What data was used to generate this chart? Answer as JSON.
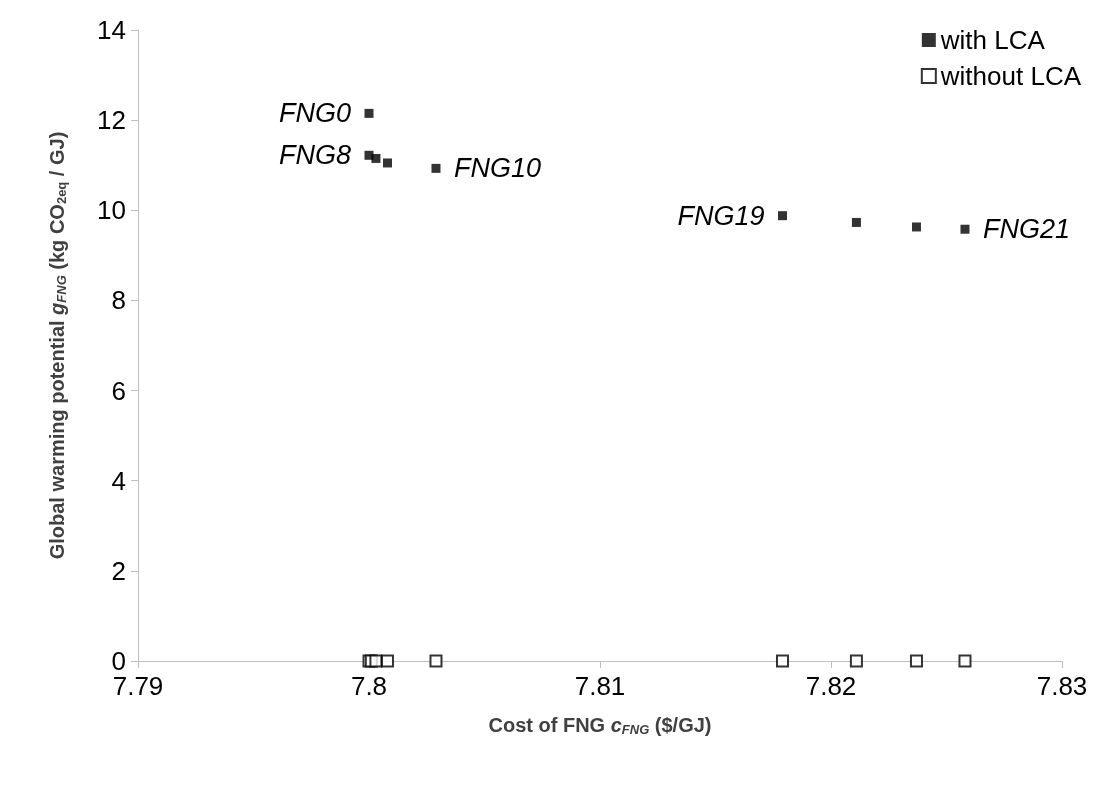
{
  "chart_data": {
    "type": "scatter",
    "xlabel": "Cost of FNG c$_{FNG}$ ($/GJ)",
    "ylabel": "Global warming potential g$_{FNG}$ (kg CO$_{2eq}$ / GJ)",
    "series": [
      {
        "name": "with LCA",
        "color": "#000000",
        "x": [
          7.8,
          7.8,
          7.8003,
          7.8008,
          7.8029,
          7.8179,
          7.8211,
          7.8237,
          7.8258
        ],
        "values": [
          12.15,
          11.22,
          11.15,
          11.05,
          10.93,
          9.88,
          9.73,
          9.63,
          9.58
        ]
      },
      {
        "name": "without LCA",
        "color": "#000000",
        "x": [
          7.8,
          7.8001,
          7.8003,
          7.8008,
          7.8029,
          7.8179,
          7.8211,
          7.8237,
          7.8258
        ],
        "values": [
          0,
          0,
          0,
          0,
          0,
          0,
          0,
          0,
          0
        ]
      }
    ],
    "annotations": [
      {
        "text": "FNG0",
        "x": 7.8,
        "y": 12.15
      },
      {
        "text": "FNG8",
        "x": 7.8,
        "y": 11.22
      },
      {
        "text": "FNG10",
        "x": 7.8029,
        "y": 10.93
      },
      {
        "text": "FNG19",
        "x": 7.8179,
        "y": 9.88
      },
      {
        "text": "FNG21",
        "x": 7.8258,
        "y": 9.58
      }
    ],
    "xlim": [
      7.79,
      7.83
    ],
    "xticks": [
      7.79,
      7.8,
      7.81,
      7.82,
      7.83
    ],
    "ylim": [
      0,
      14
    ],
    "yticks": [
      0,
      2,
      4,
      6,
      8,
      10,
      12,
      14
    ],
    "marker": "square",
    "legend": "top right",
    "grid": false
  }
}
